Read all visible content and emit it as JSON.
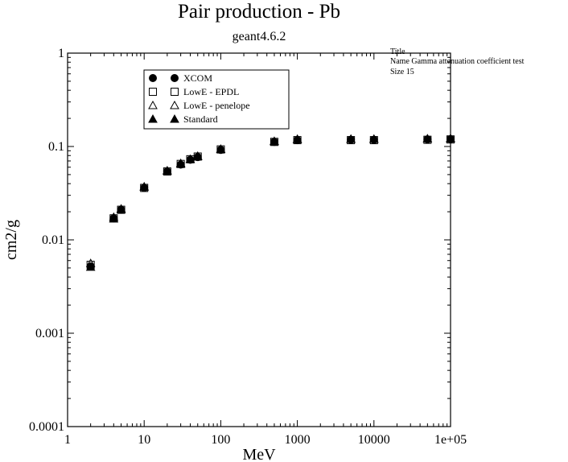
{
  "chart_data": {
    "type": "scatter",
    "title": "Pair production - Pb",
    "subtitle": "geant4.6.2",
    "xlabel": "MeV",
    "ylabel": "cm2/g",
    "xscale": "log",
    "yscale": "log",
    "xlim": [
      1,
      100000
    ],
    "ylim": [
      0.0001,
      1
    ],
    "x_tick_labels": [
      "1",
      "10",
      "100",
      "1000",
      "10000",
      "1e+05"
    ],
    "y_tick_labels": [
      "0.0001",
      "0.001",
      "0.01",
      "0.1",
      "1"
    ],
    "grid": false,
    "legend_position": "top-left",
    "series": [
      {
        "name": "XCOM",
        "marker": "circle-filled",
        "x": [
          2,
          4,
          5,
          10,
          20,
          30,
          40,
          50,
          100,
          500,
          1000,
          5000,
          10000,
          50000,
          100000
        ],
        "y": [
          0.0052,
          0.017,
          0.021,
          0.036,
          0.054,
          0.064,
          0.072,
          0.077,
          0.092,
          0.112,
          0.117,
          0.118,
          0.118,
          0.119,
          0.12
        ]
      },
      {
        "name": "LowE - EPDL",
        "marker": "square-open",
        "x": [
          2,
          4,
          5,
          10,
          20,
          30,
          40,
          50,
          100,
          500,
          1000,
          5000,
          10000,
          50000,
          100000
        ],
        "y": [
          0.0054,
          0.017,
          0.021,
          0.036,
          0.054,
          0.065,
          0.073,
          0.078,
          0.093,
          0.112,
          0.117,
          0.117,
          0.117,
          0.118,
          0.119
        ]
      },
      {
        "name": "LowE - penelope",
        "marker": "triangle-open",
        "x": [
          2,
          4,
          5,
          10,
          20,
          30,
          40,
          50,
          100,
          500,
          1000,
          5000,
          10000,
          50000,
          100000
        ],
        "y": [
          0.0056,
          0.0175,
          0.0215,
          0.037,
          0.055,
          0.066,
          0.073,
          0.079,
          0.094,
          0.114,
          0.119,
          0.12,
          0.12,
          0.121,
          0.122
        ]
      },
      {
        "name": "Standard",
        "marker": "triangle-filled",
        "x": [
          2,
          4,
          5,
          10,
          20,
          30,
          40,
          50,
          100,
          500,
          1000,
          5000,
          10000,
          50000,
          100000
        ],
        "y": [
          0.0051,
          0.0168,
          0.0212,
          0.037,
          0.055,
          0.065,
          0.073,
          0.078,
          0.093,
          0.113,
          0.12,
          0.12,
          0.12,
          0.121,
          0.121
        ]
      }
    ]
  },
  "stats_box": {
    "line1": "Title",
    "line2": "Name  Gamma attenuation coefficient test",
    "line3": "Size  15"
  }
}
